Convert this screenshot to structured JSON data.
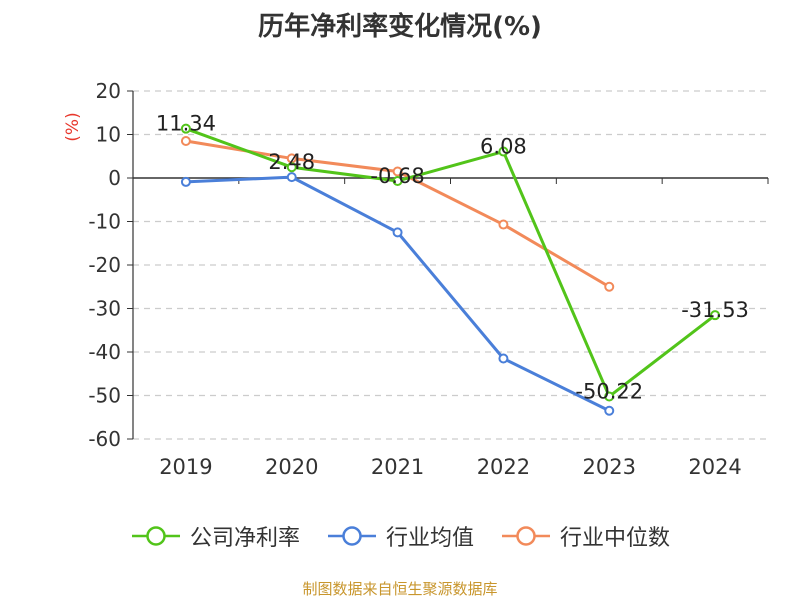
{
  "title": "历年净利率变化情况(%)",
  "source_text": "制图数据来自恒生聚源数据库",
  "colors": {
    "net_margin": "#52c41a",
    "industry_avg": "#4a7fd9",
    "industry_median": "#f28a5a",
    "grid": "#cccccc",
    "axis": "#333333",
    "ylabel": "#e8372c"
  },
  "chart_data": {
    "type": "line",
    "categories": [
      "2019",
      "2020",
      "2021",
      "2022",
      "2023",
      "2024"
    ],
    "ylabel": "(%)",
    "ylim": [
      -60,
      20
    ],
    "yticks": [
      20,
      10,
      0,
      -10,
      -20,
      -30,
      -40,
      -50,
      -60
    ],
    "grid": true,
    "legend_position": "bottom",
    "series": [
      {
        "name": "公司净利率",
        "key": "net_margin",
        "values": [
          11.34,
          2.48,
          -0.68,
          6.08,
          -50.22,
          -31.53
        ],
        "labels": [
          "11.34",
          "2.48",
          "-0.68",
          "6.08",
          "-50.22",
          "-31.53"
        ]
      },
      {
        "name": "行业均值",
        "key": "industry_avg",
        "values": [
          -0.9,
          0.2,
          -12.5,
          -41.5,
          -53.5,
          null
        ]
      },
      {
        "name": "行业中位数",
        "key": "industry_median",
        "values": [
          8.5,
          4.5,
          1.5,
          -10.7,
          -25.0,
          null
        ]
      }
    ]
  }
}
